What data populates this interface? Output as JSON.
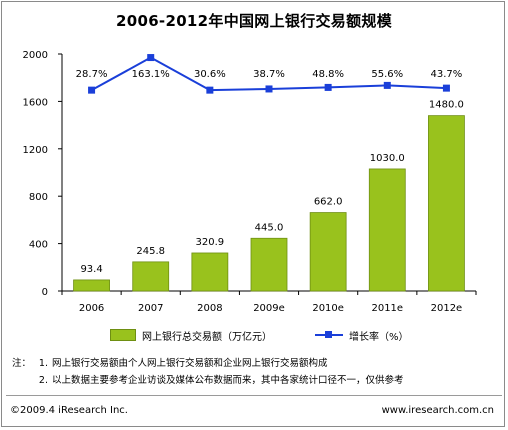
{
  "title": "2006-2012年中国网上银行交易额规模",
  "chart_data": {
    "type": "bar+line",
    "categories": [
      "2006",
      "2007",
      "2008",
      "2009e",
      "2010e",
      "2011e",
      "2012e"
    ],
    "series": [
      {
        "name": "网上银行总交易额（万亿元）",
        "kind": "bar",
        "color": "#99c21d",
        "values": [
          93.4,
          245.8,
          320.9,
          445.0,
          662.0,
          1030.0,
          1480.0
        ],
        "labels": [
          "93.4",
          "245.8",
          "320.9",
          "445.0",
          "662.0",
          "1030.0",
          "1480.0"
        ]
      },
      {
        "name": "增长率（%）",
        "kind": "line",
        "color": "#1a3fd9",
        "values": [
          28.7,
          163.1,
          30.6,
          38.7,
          48.8,
          55.6,
          43.7
        ],
        "labels": [
          "28.7%",
          "163.1%",
          "30.6%",
          "38.7%",
          "48.8%",
          "55.6%",
          "43.7%"
        ],
        "plot_levels": [
          1695,
          1970,
          1695,
          1705,
          1718,
          1735,
          1712
        ]
      }
    ],
    "yticks": [
      0,
      400,
      800,
      1200,
      1600,
      2000
    ],
    "ylim": [
      0,
      2000
    ],
    "grid": false,
    "legend_position": "bottom"
  },
  "legend": {
    "bar_label": "网上银行总交易额（万亿元）",
    "line_label": "增长率（%）"
  },
  "notes": {
    "prefix": "注：",
    "items": [
      {
        "num": "1.",
        "text": "网上银行交易额由个人网上银行交易额和企业网上银行交易额构成"
      },
      {
        "num": "2.",
        "text": "以上数据主要参考企业访谈及媒体公布数据而来，其中各家统计口径不一，仅供参考"
      }
    ]
  },
  "footer": {
    "copyright": "©2009.4 iResearch Inc.",
    "website": "www.iresearch.com.cn"
  }
}
